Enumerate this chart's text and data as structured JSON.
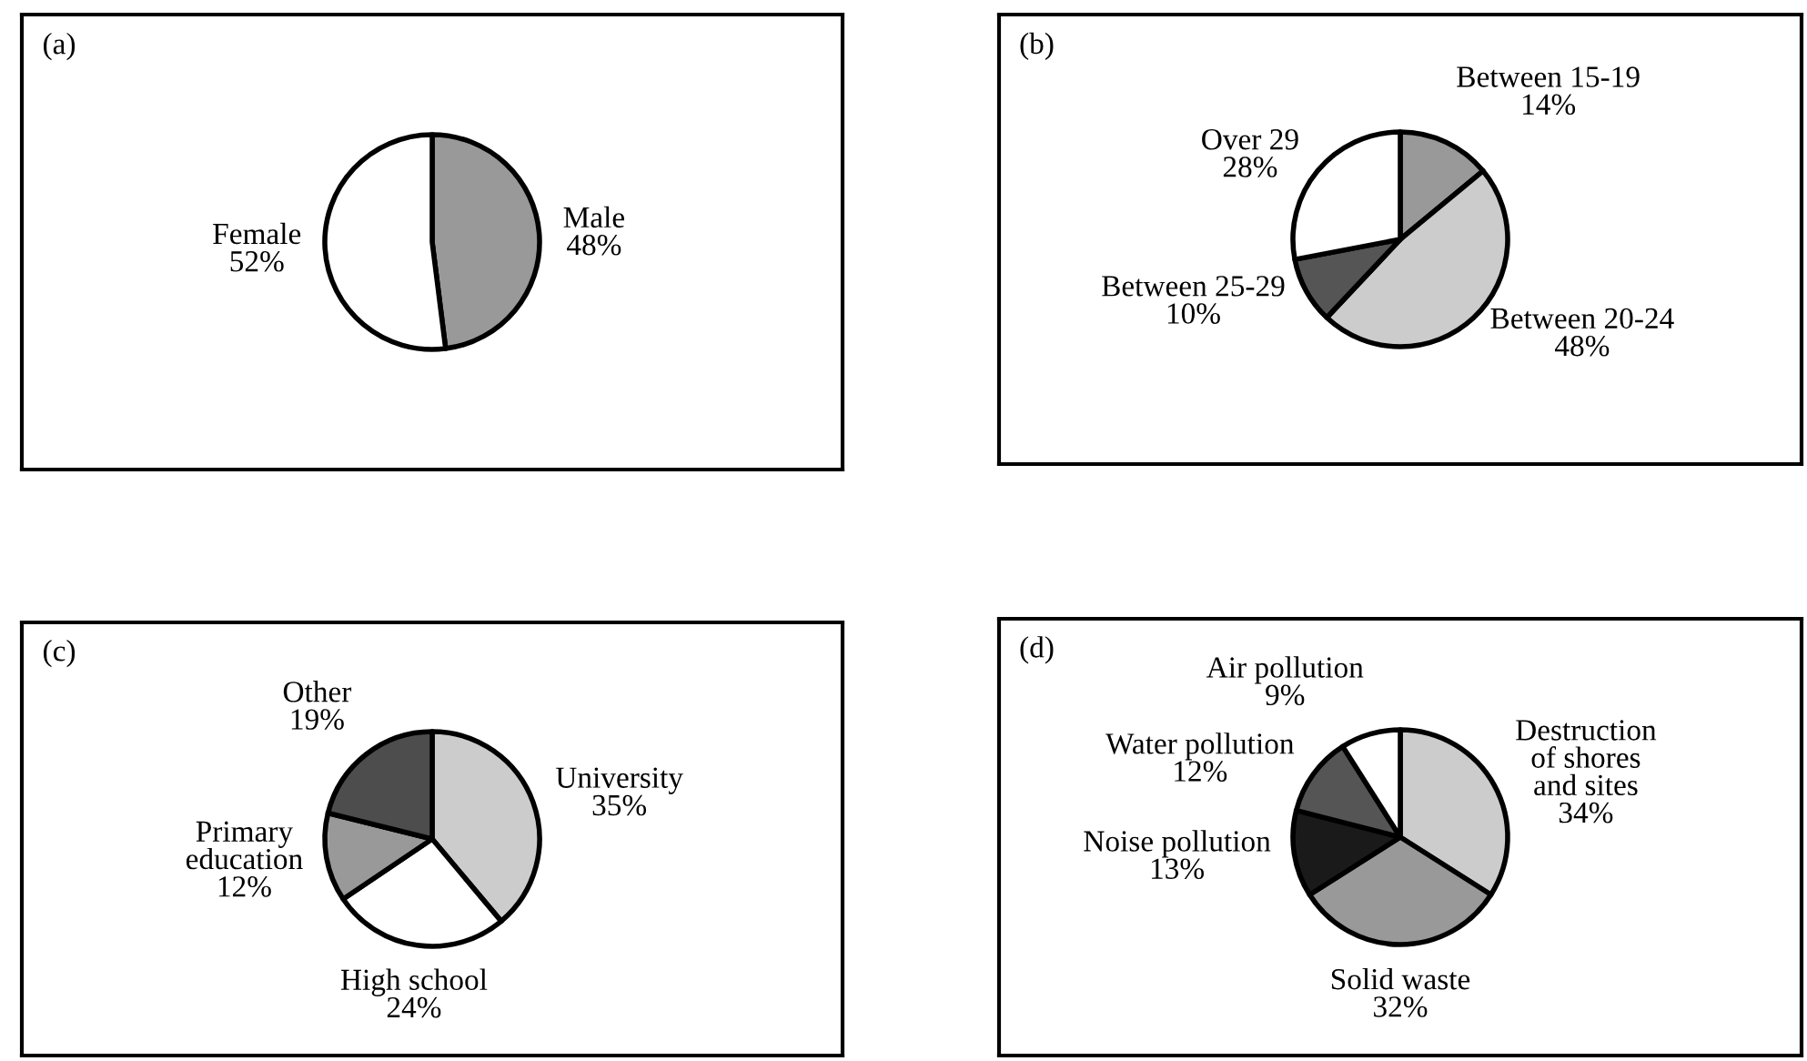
{
  "chart_data": [
    {
      "type": "pie",
      "title": "(a)",
      "categories": [
        "Male",
        "Female"
      ],
      "values": [
        48,
        52
      ],
      "value_labels": [
        "48%",
        "52%"
      ],
      "colors": [
        "#999999",
        "#ffffff"
      ]
    },
    {
      "type": "pie",
      "title": "(b)",
      "categories": [
        "Between 15-19",
        "Between 20-24",
        "Between 25-29",
        "Over 29"
      ],
      "values": [
        14,
        48,
        10,
        28
      ],
      "value_labels": [
        "14%",
        "48%",
        "10%",
        "28%"
      ],
      "colors": [
        "#999999",
        "#cccccc",
        "#555555",
        "#ffffff"
      ]
    },
    {
      "type": "pie",
      "title": "(c)",
      "categories": [
        "University",
        "High school",
        "Primary\neducation",
        "Other"
      ],
      "values": [
        35,
        24,
        12,
        19
      ],
      "value_labels": [
        "35%",
        "24%",
        "12%",
        "19%"
      ],
      "colors": [
        "#cccccc",
        "#ffffff",
        "#999999",
        "#4d4d4d"
      ]
    },
    {
      "type": "pie",
      "title": "(d)",
      "categories": [
        "Destruction\nof shores\nand sites",
        "Solid waste",
        "Noise pollution",
        "Water pollution",
        "Air pollution"
      ],
      "values": [
        34,
        32,
        13,
        12,
        9
      ],
      "value_labels": [
        "34%",
        "32%",
        "13%",
        "12%",
        "9%"
      ],
      "colors": [
        "#cccccc",
        "#999999",
        "#1a1a1a",
        "#555555",
        "#ffffff"
      ]
    }
  ]
}
